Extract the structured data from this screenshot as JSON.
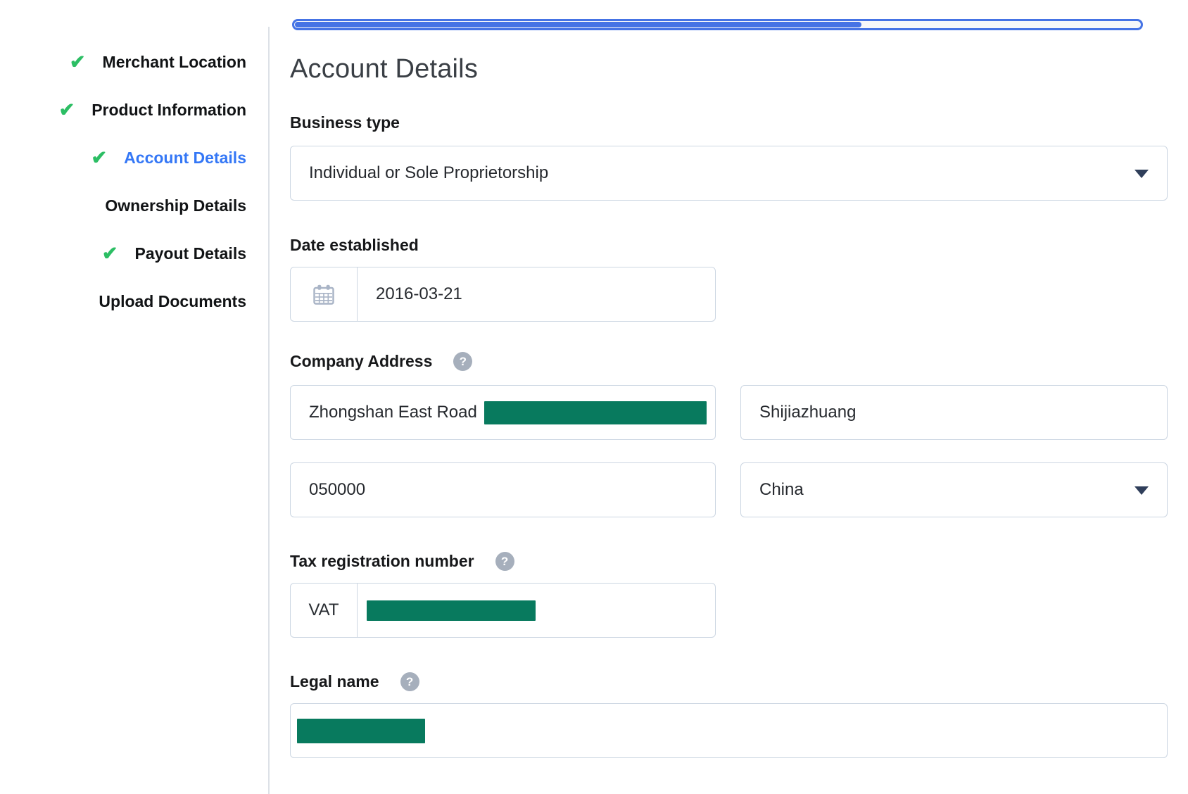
{
  "progress": {
    "percent": 67
  },
  "sidebar": {
    "items": [
      {
        "label": "Merchant Location",
        "checked": true,
        "active": false
      },
      {
        "label": "Product Information",
        "checked": true,
        "active": false
      },
      {
        "label": "Account Details",
        "checked": true,
        "active": true
      },
      {
        "label": "Ownership Details",
        "checked": false,
        "active": false
      },
      {
        "label": "Payout Details",
        "checked": true,
        "active": false
      },
      {
        "label": "Upload Documents",
        "checked": false,
        "active": false
      }
    ]
  },
  "page": {
    "title": "Account Details"
  },
  "form": {
    "business_type": {
      "label": "Business type",
      "selected": "Individual or Sole Proprietorship"
    },
    "date_established": {
      "label": "Date established",
      "value": "2016-03-21"
    },
    "company_address": {
      "label": "Company Address",
      "street": "Zhongshan East Road",
      "city": "Shijiazhuang",
      "postal_code": "050000",
      "country": "China"
    },
    "tax_registration_number": {
      "label": "Tax registration number",
      "type": "VAT"
    },
    "legal_name": {
      "label": "Legal name"
    }
  },
  "icons": {
    "check_glyph": "✔",
    "help_glyph": "?",
    "check_name": "checkmark-icon",
    "calendar_name": "calendar-icon",
    "help_name": "help-icon",
    "dropdown_name": "chevron-down-icon"
  },
  "colors": {
    "progress_blue": "#4573E5",
    "check_green": "#2CBE64",
    "active_link_blue": "#3477F6",
    "redaction_green": "#087A5E",
    "input_border": "#CCD6E2"
  }
}
